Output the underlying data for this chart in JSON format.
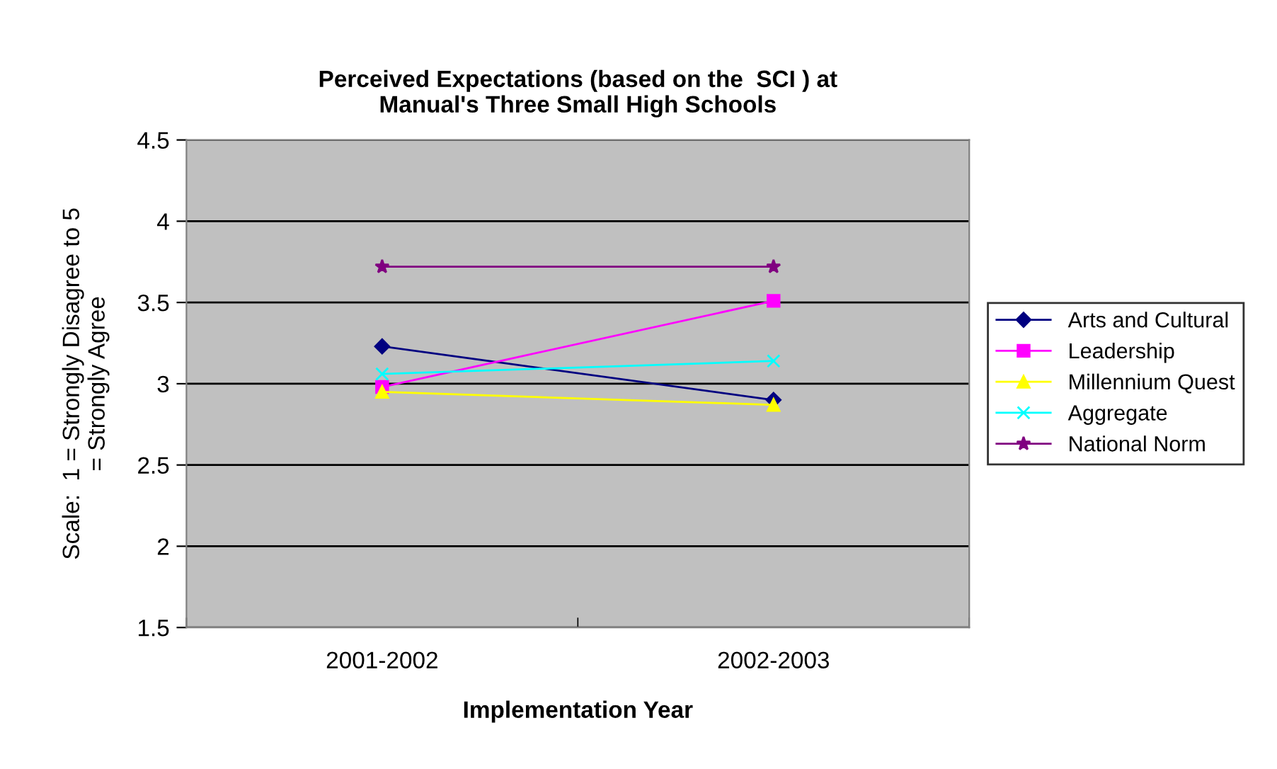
{
  "chart_data": {
    "type": "line",
    "title": "Perceived Expectations (based on the  SCI ) at\nManual's Three Small High Schools",
    "xlabel": "Implementation Year",
    "ylabel": "Scale:  1 = Strongly Disagree to 5\n= Strongly Agree",
    "categories": [
      "2001-2002",
      "2002-2003"
    ],
    "series": [
      {
        "name": "Arts and Cultural",
        "color": "#000080",
        "marker": "diamond",
        "values": [
          3.23,
          2.9
        ]
      },
      {
        "name": "Leadership",
        "color": "#ff00ff",
        "marker": "square",
        "values": [
          2.98,
          3.51
        ]
      },
      {
        "name": "Millennium Quest",
        "color": "#ffff00",
        "marker": "triangle",
        "values": [
          2.95,
          2.87
        ]
      },
      {
        "name": "Aggregate",
        "color": "#00ffff",
        "marker": "cross",
        "values": [
          3.06,
          3.14
        ]
      },
      {
        "name": "National Norm",
        "color": "#800080",
        "marker": "star",
        "values": [
          3.72,
          3.72
        ]
      }
    ],
    "ylim": [
      1.5,
      4.5
    ],
    "yticks": [
      1.5,
      2,
      2.5,
      3,
      3.5,
      4,
      4.5
    ],
    "grid": "y",
    "legend": "right"
  }
}
